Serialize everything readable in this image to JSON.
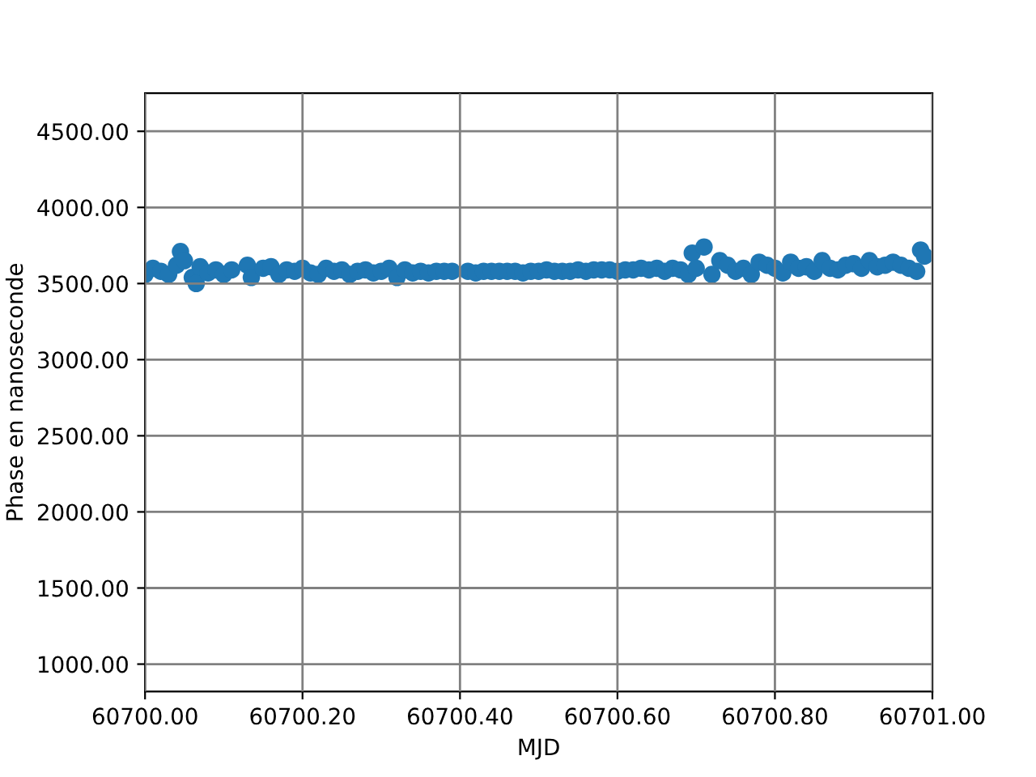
{
  "chart_data": {
    "type": "scatter",
    "xlabel": "MJD",
    "ylabel": "Phase en nanoseconde",
    "color": "#1f77b4",
    "marker": "circle",
    "grid": true,
    "x": [
      60700.0,
      60700.01,
      60700.02,
      60700.03,
      60700.04,
      60700.045,
      60700.05,
      60700.06,
      60700.065,
      60700.07,
      60700.08,
      60700.09,
      60700.1,
      60700.11,
      60700.13,
      60700.135,
      60700.15,
      60700.16,
      60700.17,
      60700.18,
      60700.19,
      60700.2,
      60700.21,
      60700.22,
      60700.23,
      60700.24,
      60700.25,
      60700.26,
      60700.27,
      60700.28,
      60700.29,
      60700.3,
      60700.31,
      60700.32,
      60700.33,
      60700.34,
      60700.35,
      60700.36,
      60700.37,
      60700.38,
      60700.39,
      60700.41,
      60700.42,
      60700.43,
      60700.44,
      60700.45,
      60700.46,
      60700.47,
      60700.48,
      60700.49,
      60700.5,
      60700.51,
      60700.52,
      60700.53,
      60700.54,
      60700.55,
      60700.56,
      60700.57,
      60700.58,
      60700.59,
      60700.6,
      60700.61,
      60700.62,
      60700.63,
      60700.64,
      60700.65,
      60700.66,
      60700.67,
      60700.68,
      60700.69,
      60700.695,
      60700.7,
      60700.71,
      60700.72,
      60700.73,
      60700.74,
      60700.75,
      60700.76,
      60700.77,
      60700.78,
      60700.79,
      60700.8,
      60700.81,
      60700.82,
      60700.83,
      60700.84,
      60700.85,
      60700.86,
      60700.87,
      60700.88,
      60700.89,
      60700.9,
      60700.91,
      60700.92,
      60700.93,
      60700.94,
      60700.95,
      60700.96,
      60700.97,
      60700.98,
      60700.985,
      60700.99
    ],
    "values": [
      3560,
      3600,
      3580,
      3560,
      3620,
      3710,
      3650,
      3540,
      3500,
      3610,
      3570,
      3590,
      3560,
      3590,
      3620,
      3540,
      3600,
      3610,
      3560,
      3590,
      3580,
      3600,
      3570,
      3560,
      3600,
      3580,
      3590,
      3560,
      3580,
      3590,
      3570,
      3580,
      3600,
      3540,
      3590,
      3570,
      3580,
      3570,
      3580,
      3580,
      3580,
      3580,
      3570,
      3580,
      3580,
      3580,
      3580,
      3580,
      3570,
      3580,
      3580,
      3590,
      3580,
      3580,
      3580,
      3590,
      3580,
      3590,
      3590,
      3590,
      3580,
      3590,
      3590,
      3600,
      3590,
      3600,
      3580,
      3600,
      3590,
      3560,
      3700,
      3600,
      3740,
      3560,
      3650,
      3620,
      3580,
      3600,
      3560,
      3640,
      3620,
      3600,
      3570,
      3640,
      3600,
      3610,
      3580,
      3650,
      3600,
      3590,
      3620,
      3630,
      3600,
      3650,
      3610,
      3620,
      3640,
      3620,
      3600,
      3580,
      3720,
      3680
    ],
    "xlim": [
      60700.0,
      60701.0
    ],
    "ylim": [
      820,
      4750
    ],
    "xticks": [
      {
        "value": 60700.0,
        "label": "60700.00"
      },
      {
        "value": 60700.2,
        "label": "60700.20"
      },
      {
        "value": 60700.4,
        "label": "60700.40"
      },
      {
        "value": 60700.6,
        "label": "60700.60"
      },
      {
        "value": 60700.8,
        "label": "60700.80"
      },
      {
        "value": 60701.0,
        "label": "60701.00"
      }
    ],
    "yticks": [
      {
        "value": 1000,
        "label": "1000.00"
      },
      {
        "value": 1500,
        "label": "1500.00"
      },
      {
        "value": 2000,
        "label": "2000.00"
      },
      {
        "value": 2500,
        "label": "2500.00"
      },
      {
        "value": 3000,
        "label": "3000.00"
      },
      {
        "value": 3500,
        "label": "3500.00"
      },
      {
        "value": 4000,
        "label": "4000.00"
      },
      {
        "value": 4500,
        "label": "4500.00"
      }
    ]
  }
}
